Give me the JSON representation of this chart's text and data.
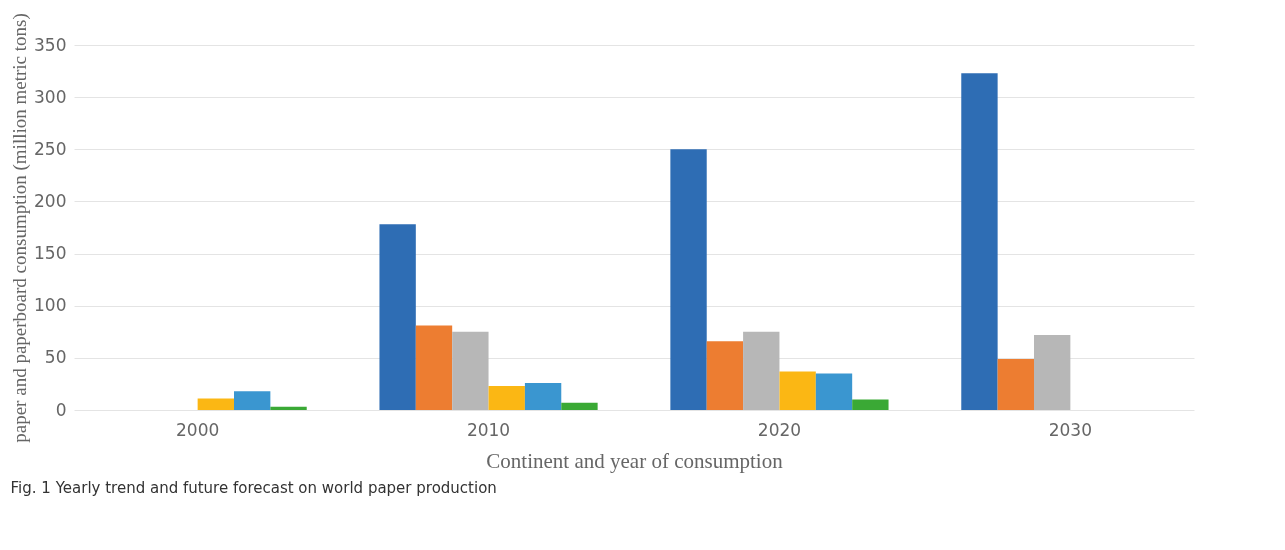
{
  "chart_data": {
    "type": "bar",
    "xlabel": "Continent and year of consumption",
    "ylabel": "paper and paperboard consumption (million metric tons)",
    "categories": [
      "2000",
      "2010",
      "2020",
      "2030"
    ],
    "series": [
      {
        "color": "#2e6db4",
        "values": [
          null,
          178,
          250,
          323
        ]
      },
      {
        "color": "#ed7d31",
        "values": [
          null,
          81,
          66,
          49
        ]
      },
      {
        "color": "#b7b7b7",
        "values": [
          null,
          75,
          75,
          72
        ]
      },
      {
        "color": "#fbb714",
        "values": [
          11,
          23,
          37,
          null
        ]
      },
      {
        "color": "#3a96d0",
        "values": [
          18,
          26,
          35,
          null
        ]
      },
      {
        "color": "#3aa935",
        "values": [
          3,
          7,
          10,
          null
        ]
      }
    ],
    "ylim": [
      0,
      350
    ],
    "yticks": [
      0,
      50,
      100,
      150,
      200,
      250,
      300,
      350
    ],
    "grid": "y",
    "legend": false,
    "annotations": [
      "Fig. 1  Yearly trend and future forecast on world paper production"
    ]
  }
}
